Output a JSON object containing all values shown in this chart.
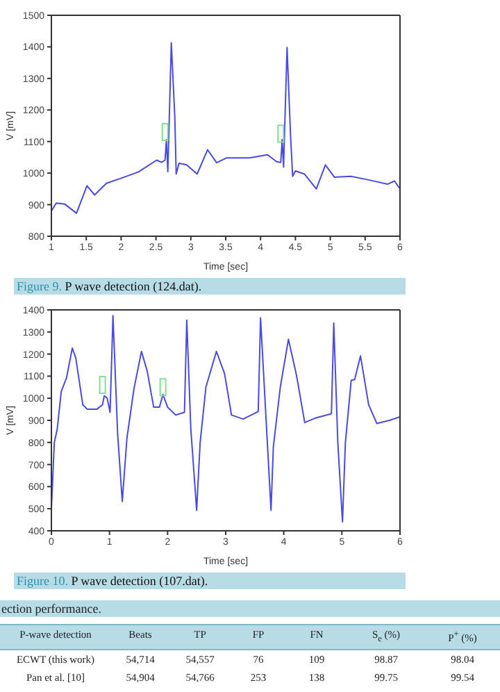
{
  "chart_data": [
    {
      "type": "line",
      "title": "Figure 9. P wave detection (124.dat).",
      "xlabel": "Time [sec]",
      "ylabel": "V [mV]",
      "xlim": [
        1,
        6
      ],
      "xticks": [
        1,
        1.5,
        2,
        2.5,
        3,
        3.5,
        4,
        4.5,
        5,
        5.5,
        6
      ],
      "ylim": [
        800,
        1500
      ],
      "yticks": [
        800,
        900,
        1000,
        1100,
        1200,
        1300,
        1400,
        1500
      ],
      "series": [
        {
          "type": "line",
          "color": "#4a4ae0",
          "x": [
            1.0,
            1.07,
            1.19,
            1.36,
            1.51,
            1.62,
            1.79,
            1.99,
            2.25,
            2.51,
            2.58,
            2.63,
            2.65,
            2.67,
            2.72,
            2.77,
            2.79,
            2.83,
            2.94,
            3.09,
            3.24,
            3.37,
            3.51,
            3.84,
            4.1,
            4.23,
            4.29,
            4.31,
            4.33,
            4.38,
            4.43,
            4.46,
            4.5,
            4.63,
            4.8,
            4.93,
            5.06,
            5.29,
            5.56,
            5.82,
            5.92,
            5.99
          ],
          "values": [
            880,
            905,
            902,
            873,
            960,
            931,
            968,
            983,
            1004,
            1041,
            1034,
            1041,
            1106,
            1004,
            1413,
            1179,
            997,
            1031,
            1026,
            997,
            1074,
            1033,
            1048,
            1048,
            1058,
            1036,
            1034,
            1106,
            1019,
            1398,
            1121,
            990,
            1007,
            997,
            950,
            1026,
            987,
            990,
            978,
            965,
            975,
            953
          ]
        },
        {
          "type": "scatter",
          "color": "#7fe08f",
          "marker": "square",
          "x": [
            2.63,
            4.29
          ],
          "values": [
            1130,
            1125
          ]
        }
      ]
    },
    {
      "type": "line",
      "title": "Figure 10. P wave detection (107.dat).",
      "xlabel": "Time [sec]",
      "ylabel": "V [mV]",
      "xlim": [
        0,
        6
      ],
      "xticks": [
        0,
        1,
        2,
        3,
        4,
        5,
        6
      ],
      "ylim": [
        400,
        1400
      ],
      "yticks": [
        400,
        500,
        600,
        700,
        800,
        900,
        1000,
        1100,
        1200,
        1300,
        1400
      ],
      "series": [
        {
          "type": "line",
          "color": "#4a4ae0",
          "x": [
            0,
            0.05,
            0.1,
            0.17,
            0.26,
            0.36,
            0.42,
            0.54,
            0.62,
            0.78,
            0.88,
            0.91,
            0.96,
            1.01,
            1.06,
            1.14,
            1.22,
            1.3,
            1.42,
            1.55,
            1.65,
            1.76,
            1.86,
            1.92,
            2.0,
            2.14,
            2.29,
            2.33,
            2.4,
            2.5,
            2.56,
            2.66,
            2.84,
            2.98,
            3.1,
            3.3,
            3.56,
            3.6,
            3.7,
            3.78,
            3.82,
            3.94,
            4.08,
            4.22,
            4.36,
            4.54,
            4.82,
            4.86,
            4.93,
            5.01,
            5.06,
            5.16,
            5.22,
            5.32,
            5.46,
            5.6,
            5.82,
            6.0
          ],
          "values": [
            497,
            799,
            860,
            1031,
            1092,
            1227,
            1182,
            971,
            950,
            950,
            971,
            1011,
            1001,
            936,
            1374,
            840,
            533,
            819,
            1041,
            1212,
            1122,
            960,
            960,
            1017,
            960,
            924,
            936,
            1354,
            860,
            493,
            799,
            1051,
            1212,
            1112,
            924,
            906,
            940,
            1364,
            880,
            493,
            779,
            1051,
            1267,
            1102,
            890,
            910,
            930,
            1340,
            799,
            440,
            799,
            1081,
            1085,
            1192,
            971,
            886,
            900,
            916
          ]
        },
        {
          "type": "scatter",
          "color": "#7fe08f",
          "marker": "square",
          "x": [
            0.88,
            1.92
          ],
          "values": [
            1060,
            1050
          ]
        }
      ]
    },
    {
      "type": "other",
      "title": "ection performance.",
      "annotations": [
        "P-wave detection",
        "Beats",
        "TP",
        "FP",
        "FN",
        "S$_{e}$ (%)",
        "P$^{+}$ (%)",
        "ECWT (this work)",
        "54,714",
        "54,557",
        "76",
        "109",
        "98.87",
        "98.04",
        "Pan et al. [10]",
        "54,904",
        "54,766",
        "253",
        "138",
        "99.75",
        "99.54"
      ]
    }
  ]
}
